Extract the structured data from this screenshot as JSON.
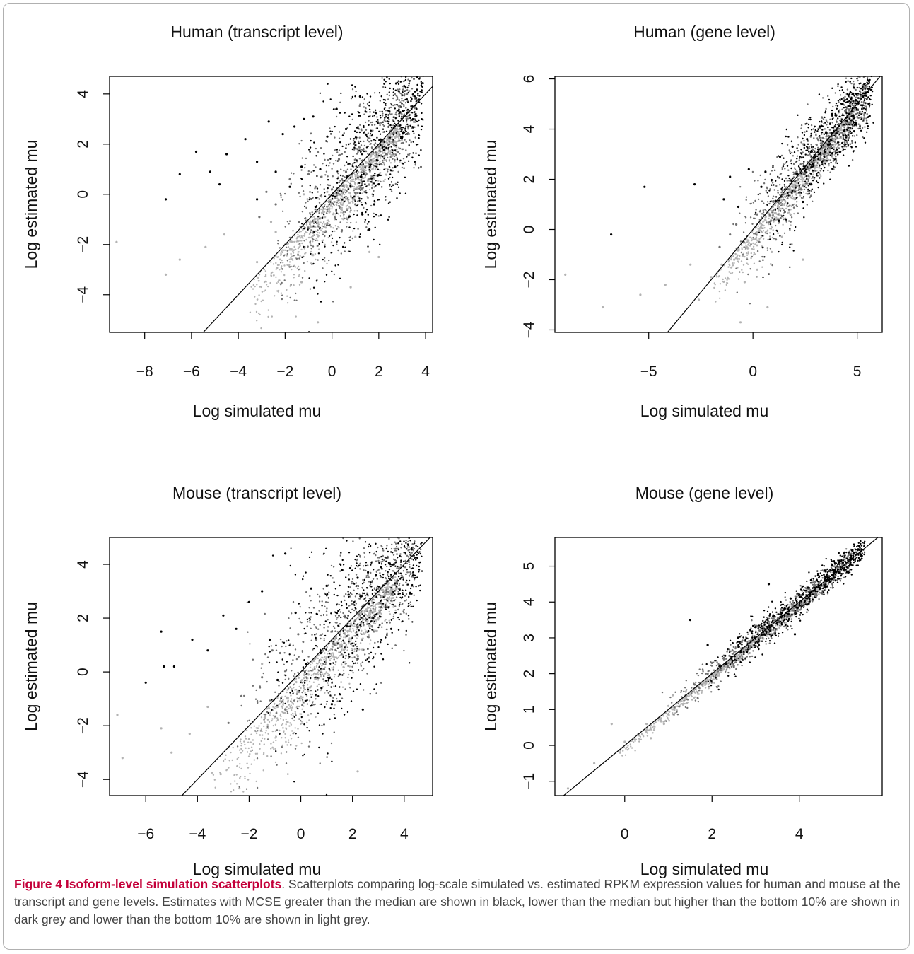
{
  "figure": {
    "caption_title": "Figure 4 Isoform-level simulation scatterplots",
    "caption_text": ". Scatterplots comparing log-scale simulated vs. estimated RPKM expression values for human and mouse at the transcript and gene levels. Estimates with MCSE greater than the median are shown in black, lower than the median but higher than the bottom 10% are shown in dark grey and lower than the bottom 10% are shown in light grey."
  },
  "colors": {
    "above_median": "#000000",
    "between_median_and_bottom10": "#707070",
    "bottom10": "#b3b3b3",
    "identity_line": "#000000",
    "frame": "#b0b0b0",
    "caption_title": "#c4003a"
  },
  "chart_data": [
    {
      "type": "scatter",
      "title": "Human (transcript level)",
      "xlabel": "Log simulated mu",
      "ylabel": "Log estimated mu",
      "xlim": [
        -9.5,
        4.3
      ],
      "ylim": [
        -5.5,
        4.7
      ],
      "xticks": [
        -8,
        -6,
        -4,
        -2,
        0,
        2,
        4
      ],
      "yticks": [
        -4,
        -2,
        0,
        2,
        4
      ],
      "reference_line": "y = x",
      "grid": false,
      "legend": "none",
      "series": [
        {
          "color_key": "above_median",
          "points": [
            [
              -6.5,
              0.8
            ],
            [
              -5.8,
              1.7
            ],
            [
              -5.2,
              0.9
            ],
            [
              -4.5,
              1.6
            ],
            [
              -4.8,
              0.4
            ],
            [
              -3.7,
              2.2
            ],
            [
              -3.2,
              1.3
            ],
            [
              -2.7,
              2.9
            ],
            [
              -2.1,
              2.4
            ],
            [
              -1.6,
              2.7
            ],
            [
              -1.2,
              3.0
            ],
            [
              -0.8,
              3.1
            ],
            [
              -0.5,
              1.0
            ],
            [
              -1.3,
              1.1
            ],
            [
              -2.4,
              0.9
            ],
            [
              0.2,
              3.4
            ],
            [
              1.2,
              3.9
            ],
            [
              0.6,
              2.6
            ],
            [
              -0.2,
              2.3
            ],
            [
              -3.2,
              -0.2
            ],
            [
              1.3,
              -0.8
            ],
            [
              1.8,
              -0.4
            ],
            [
              2.0,
              0.4
            ],
            [
              2.4,
              -1.0
            ],
            [
              2.7,
              1.1
            ],
            [
              3.0,
              2.3
            ],
            [
              1.6,
              -1.4
            ],
            [
              -1.8,
              0.3
            ],
            [
              -0.7,
              -0.5
            ],
            [
              -7.1,
              -0.2
            ]
          ]
        },
        {
          "color_key": "between_median_and_bottom10",
          "points": [
            [
              -2.8,
              0.1
            ],
            [
              -1.8,
              0.6
            ],
            [
              -0.7,
              0.3
            ],
            [
              0.3,
              1.4
            ],
            [
              1.1,
              1.8
            ],
            [
              -0.2,
              -0.6
            ],
            [
              1.0,
              -0.4
            ],
            [
              1.6,
              0.6
            ],
            [
              2.3,
              1.6
            ],
            [
              2.6,
              2.1
            ],
            [
              -3.1,
              -0.9
            ],
            [
              -1.4,
              -1.1
            ],
            [
              0.6,
              0.9
            ],
            [
              1.4,
              0.1
            ],
            [
              -2.4,
              -0.4
            ],
            [
              0.0,
              0.2
            ],
            [
              -1.0,
              0.8
            ],
            [
              2.1,
              1.2
            ]
          ]
        },
        {
          "color_key": "bottom10",
          "points": [
            [
              -9.2,
              -1.9
            ],
            [
              -7.1,
              -3.2
            ],
            [
              -6.5,
              -2.6
            ],
            [
              -5.4,
              -2.1
            ],
            [
              -4.6,
              -1.6
            ],
            [
              -3.2,
              -2.7
            ],
            [
              -2.4,
              -1.5
            ],
            [
              -1.7,
              -1.9
            ],
            [
              -0.9,
              -1.3
            ],
            [
              -0.3,
              -0.9
            ],
            [
              0.4,
              -0.4
            ],
            [
              1.0,
              -1.7
            ],
            [
              1.6,
              -2.3
            ],
            [
              2.0,
              -2.5
            ],
            [
              -1.3,
              -3.5
            ],
            [
              -0.6,
              -5.1
            ],
            [
              0.8,
              -3.7
            ],
            [
              -2.6,
              -1.1
            ],
            [
              -0.2,
              0.1
            ],
            [
              -1.2,
              0.0
            ]
          ]
        }
      ]
    },
    {
      "type": "scatter",
      "title": "Human (gene level)",
      "xlabel": "Log simulated mu",
      "ylabel": "Log estimated mu",
      "xlim": [
        -9.5,
        6.2
      ],
      "ylim": [
        -4.1,
        6.1
      ],
      "xticks": [
        -5,
        0,
        5
      ],
      "yticks": [
        -4,
        -2,
        0,
        2,
        4,
        6
      ],
      "reference_line": "y = x",
      "grid": false,
      "legend": "none",
      "series": [
        {
          "color_key": "above_median",
          "points": [
            [
              -6.8,
              -0.2
            ],
            [
              -5.2,
              1.7
            ],
            [
              -2.8,
              1.8
            ],
            [
              -1.4,
              1.2
            ],
            [
              -1.1,
              2.1
            ],
            [
              -0.2,
              2.4
            ],
            [
              0.6,
              2.3
            ],
            [
              1.3,
              2.9
            ],
            [
              1.9,
              3.3
            ],
            [
              2.6,
              3.6
            ],
            [
              3.2,
              4.1
            ],
            [
              3.8,
              4.6
            ],
            [
              4.3,
              5.0
            ],
            [
              4.8,
              5.4
            ],
            [
              2.4,
              1.1
            ],
            [
              2.8,
              1.8
            ],
            [
              3.3,
              2.7
            ],
            [
              1.6,
              0.4
            ],
            [
              0.4,
              1.7
            ],
            [
              -0.7,
              0.9
            ]
          ]
        },
        {
          "color_key": "between_median_and_bottom10",
          "points": [
            [
              -1.6,
              -0.7
            ],
            [
              -0.8,
              0.2
            ],
            [
              0.2,
              0.6
            ],
            [
              0.8,
              0.3
            ],
            [
              1.2,
              1.1
            ],
            [
              1.7,
              1.6
            ],
            [
              2.1,
              2.3
            ],
            [
              0.3,
              -0.5
            ],
            [
              -0.4,
              -0.4
            ],
            [
              1.1,
              -0.4
            ],
            [
              2.3,
              1.6
            ],
            [
              2.9,
              2.7
            ],
            [
              -1.1,
              -0.2
            ]
          ]
        },
        {
          "color_key": "bottom10",
          "points": [
            [
              -9.0,
              -1.8
            ],
            [
              -7.2,
              -3.1
            ],
            [
              -5.4,
              -2.6
            ],
            [
              -4.2,
              -2.2
            ],
            [
              -3.0,
              -1.4
            ],
            [
              -2.6,
              -2.8
            ],
            [
              -2.0,
              -1.9
            ],
            [
              -1.5,
              -1.4
            ],
            [
              -0.9,
              -1.2
            ],
            [
              -0.4,
              -2.1
            ],
            [
              0.2,
              -1.6
            ],
            [
              0.9,
              -0.9
            ],
            [
              1.4,
              -0.3
            ],
            [
              1.8,
              0.6
            ],
            [
              -0.6,
              -3.7
            ],
            [
              0.7,
              -3.1
            ],
            [
              2.4,
              -1.2
            ]
          ]
        }
      ]
    },
    {
      "type": "scatter",
      "title": "Mouse (transcript level)",
      "xlabel": "Log simulated mu",
      "ylabel": "Log estimated mu",
      "xlim": [
        -7.4,
        5.1
      ],
      "ylim": [
        -4.6,
        5.0
      ],
      "xticks": [
        -6,
        -4,
        -2,
        0,
        2,
        4
      ],
      "yticks": [
        -4,
        -2,
        0,
        2,
        4
      ],
      "reference_line": "y = x",
      "grid": false,
      "legend": "none",
      "series": [
        {
          "color_key": "above_median",
          "points": [
            [
              -6.0,
              -0.4
            ],
            [
              -5.4,
              1.5
            ],
            [
              -4.9,
              0.2
            ],
            [
              -4.2,
              1.2
            ],
            [
              -3.6,
              0.8
            ],
            [
              -3.0,
              2.1
            ],
            [
              -2.5,
              1.6
            ],
            [
              -2.0,
              2.6
            ],
            [
              -1.5,
              3.0
            ],
            [
              -1.2,
              1.2
            ],
            [
              -0.6,
              4.4
            ],
            [
              -0.2,
              2.2
            ],
            [
              0.4,
              3.1
            ],
            [
              1.0,
              3.2
            ],
            [
              1.6,
              3.8
            ],
            [
              2.2,
              3.5
            ],
            [
              2.6,
              3.7
            ],
            [
              3.1,
              3.9
            ],
            [
              3.6,
              4.0
            ],
            [
              0.2,
              0.3
            ],
            [
              0.8,
              -0.6
            ],
            [
              1.5,
              -0.1
            ],
            [
              2.0,
              0.7
            ],
            [
              2.8,
              2.0
            ],
            [
              3.4,
              2.4
            ],
            [
              1.2,
              -1.2
            ],
            [
              2.4,
              -1.4
            ],
            [
              3.5,
              1.6
            ],
            [
              -0.9,
              -0.3
            ],
            [
              -5.3,
              0.2
            ]
          ]
        },
        {
          "color_key": "between_median_and_bottom10",
          "points": [
            [
              -2.3,
              -0.9
            ],
            [
              -1.5,
              -0.2
            ],
            [
              -0.8,
              0.7
            ],
            [
              -0.1,
              1.4
            ],
            [
              0.6,
              1.2
            ],
            [
              1.2,
              1.5
            ],
            [
              1.7,
              2.1
            ],
            [
              2.4,
              2.4
            ],
            [
              0.1,
              -0.5
            ],
            [
              0.9,
              0.1
            ],
            [
              -1.1,
              0.8
            ],
            [
              2.1,
              1.9
            ],
            [
              -2.8,
              -1.9
            ],
            [
              -0.6,
              -1.4
            ]
          ]
        },
        {
          "color_key": "bottom10",
          "points": [
            [
              -7.1,
              -1.6
            ],
            [
              -6.9,
              -3.2
            ],
            [
              -5.4,
              -2.1
            ],
            [
              -5.0,
              -3.0
            ],
            [
              -4.3,
              -2.3
            ],
            [
              -3.6,
              -1.3
            ],
            [
              -2.8,
              -2.8
            ],
            [
              -2.0,
              -2.5
            ],
            [
              -1.4,
              -1.7
            ],
            [
              -0.9,
              -1.3
            ],
            [
              -0.4,
              -0.4
            ],
            [
              0.3,
              -0.1
            ],
            [
              -3.1,
              -3.8
            ],
            [
              -1.5,
              0.3
            ],
            [
              2.2,
              -3.7
            ]
          ]
        }
      ]
    },
    {
      "type": "scatter",
      "title": "Mouse (gene level)",
      "xlabel": "Log simulated mu",
      "ylabel": "Log estimated mu",
      "xlim": [
        -1.6,
        5.9
      ],
      "ylim": [
        -1.4,
        5.8
      ],
      "xticks": [
        0,
        2,
        4
      ],
      "yticks": [
        -1,
        0,
        1,
        2,
        3,
        4,
        5
      ],
      "reference_line": "y = x",
      "grid": false,
      "legend": "none",
      "series": [
        {
          "color_key": "above_median",
          "points": [
            [
              1.5,
              3.5
            ],
            [
              1.9,
              2.8
            ],
            [
              2.3,
              2.5
            ],
            [
              2.6,
              3.0
            ],
            [
              2.8,
              2.6
            ],
            [
              3.0,
              3.3
            ],
            [
              3.2,
              3.1
            ],
            [
              3.4,
              3.6
            ],
            [
              3.6,
              3.7
            ],
            [
              3.8,
              4.1
            ],
            [
              4.0,
              4.2
            ],
            [
              4.2,
              4.4
            ],
            [
              4.4,
              4.6
            ],
            [
              4.6,
              4.7
            ],
            [
              4.8,
              4.9
            ],
            [
              5.0,
              5.1
            ],
            [
              5.2,
              5.2
            ],
            [
              3.3,
              4.5
            ],
            [
              3.9,
              3.1
            ]
          ]
        },
        {
          "color_key": "between_median_and_bottom10",
          "points": [
            [
              1.6,
              1.7
            ],
            [
              1.9,
              2.0
            ],
            [
              2.2,
              2.1
            ],
            [
              2.4,
              2.5
            ],
            [
              2.7,
              2.7
            ],
            [
              2.9,
              2.9
            ],
            [
              3.1,
              3.2
            ],
            [
              2.0,
              2.3
            ],
            [
              1.4,
              1.4
            ],
            [
              2.5,
              2.2
            ]
          ]
        },
        {
          "color_key": "bottom10",
          "points": [
            [
              -1.3,
              -1.2
            ],
            [
              -0.7,
              -0.5
            ],
            [
              -0.3,
              0.6
            ],
            [
              0.0,
              0.1
            ],
            [
              0.3,
              0.3
            ],
            [
              0.5,
              0.6
            ],
            [
              0.8,
              0.8
            ],
            [
              1.0,
              1.1
            ],
            [
              1.2,
              1.2
            ],
            [
              1.4,
              1.5
            ],
            [
              1.6,
              1.6
            ],
            [
              1.8,
              1.8
            ],
            [
              0.9,
              0.6
            ],
            [
              1.1,
              1.4
            ],
            [
              0.6,
              0.2
            ]
          ]
        }
      ]
    }
  ]
}
